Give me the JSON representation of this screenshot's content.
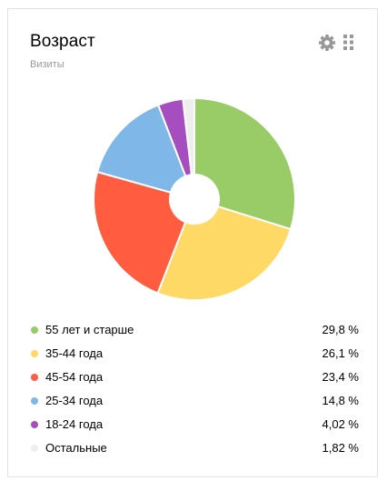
{
  "widget": {
    "title": "Возраст",
    "subtitle": "Визиты",
    "settings_icon": "gear-icon",
    "drag_icon": "drag-handle-icon"
  },
  "chart_data": {
    "type": "pie",
    "donut": true,
    "categories": [
      "55 лет и старше",
      "35-44 года",
      "45-54 года",
      "25-34 года",
      "18-24 года",
      "Остальные"
    ],
    "values": [
      29.8,
      26.1,
      23.4,
      14.8,
      4.02,
      1.82
    ],
    "value_labels": [
      "29,8 %",
      "26,1 %",
      "23,4 %",
      "14,8 %",
      "4,02 %",
      "1,82 %"
    ],
    "colors": [
      "#99cc66",
      "#ffd966",
      "#ff5c40",
      "#7fb8e8",
      "#a64dbf",
      "#eeeeee"
    ],
    "title": "Возраст",
    "subtitle": "Визиты",
    "legend": "bottom"
  }
}
